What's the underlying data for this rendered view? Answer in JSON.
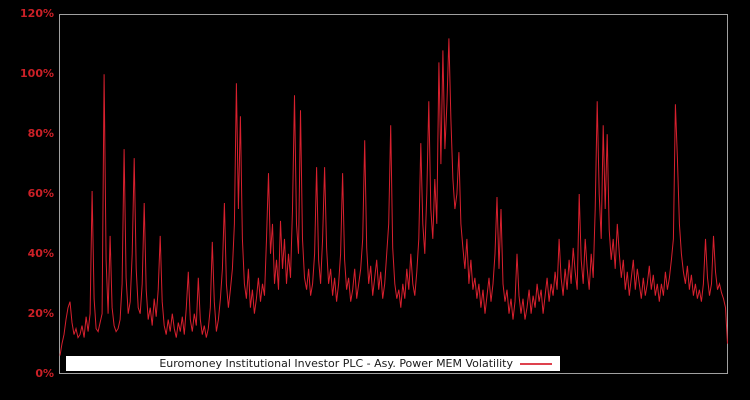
{
  "window": {
    "background": "#000000"
  },
  "chart_data": {
    "type": "line",
    "title": "",
    "xlabel": "",
    "ylabel": "",
    "grid": false,
    "legend_position": "bottom-inside",
    "axis_color": "#a0a0a0",
    "plot_background": "#000000",
    "tick_label_color": "#cc2027",
    "ylim": [
      0,
      120
    ],
    "ytick_values": [
      120,
      100,
      80,
      60,
      40,
      20,
      0
    ],
    "yticks": [
      "120%",
      "100%",
      "80%",
      "60%",
      "40%",
      "20%",
      "0%"
    ],
    "xticks": [],
    "series": [
      {
        "name": "Euromoney Institutional Investor PLC - Asy. Power MEM Volatility",
        "color": "#d8202e",
        "unit": "%",
        "values": [
          6,
          10,
          13,
          18,
          22,
          24,
          17,
          13,
          15,
          12,
          13,
          16,
          12,
          19,
          14,
          20,
          61,
          25,
          15,
          14,
          17,
          20,
          100,
          38,
          20,
          46,
          22,
          16,
          14,
          15,
          18,
          30,
          75,
          32,
          20,
          24,
          40,
          72,
          35,
          22,
          20,
          30,
          57,
          28,
          18,
          22,
          16,
          25,
          19,
          28,
          46,
          24,
          16,
          13,
          18,
          14,
          20,
          15,
          12,
          17,
          14,
          19,
          13,
          22,
          34,
          18,
          14,
          20,
          16,
          32,
          18,
          13,
          16,
          12,
          15,
          22,
          44,
          24,
          14,
          18,
          25,
          35,
          57,
          30,
          22,
          28,
          35,
          50,
          97,
          55,
          86,
          45,
          30,
          25,
          35,
          22,
          28,
          20,
          25,
          32,
          24,
          30,
          26,
          45,
          67,
          40,
          50,
          30,
          38,
          28,
          51,
          35,
          45,
          30,
          40,
          32,
          55,
          93,
          50,
          40,
          88,
          45,
          32,
          28,
          35,
          26,
          30,
          40,
          69,
          38,
          30,
          45,
          69,
          42,
          30,
          35,
          26,
          32,
          24,
          30,
          40,
          67,
          38,
          28,
          32,
          24,
          28,
          35,
          25,
          30,
          35,
          45,
          78,
          42,
          30,
          36,
          26,
          32,
          38,
          28,
          34,
          25,
          30,
          40,
          50,
          83,
          42,
          30,
          25,
          28,
          22,
          30,
          25,
          35,
          28,
          40,
          30,
          26,
          34,
          45,
          77,
          50,
          40,
          60,
          91,
          55,
          45,
          65,
          50,
          104,
          70,
          108,
          75,
          90,
          112,
          85,
          65,
          55,
          60,
          74,
          50,
          42,
          35,
          45,
          30,
          38,
          28,
          32,
          25,
          30,
          22,
          28,
          20,
          26,
          32,
          24,
          30,
          40,
          59,
          35,
          55,
          30,
          24,
          28,
          20,
          25,
          18,
          24,
          40,
          26,
          20,
          25,
          18,
          22,
          28,
          20,
          26,
          22,
          30,
          24,
          28,
          20,
          26,
          32,
          24,
          30,
          26,
          34,
          28,
          45,
          32,
          26,
          35,
          28,
          38,
          30,
          42,
          34,
          28,
          60,
          38,
          30,
          45,
          35,
          28,
          40,
          32,
          55,
          91,
          60,
          45,
          83,
          55,
          80,
          48,
          38,
          45,
          35,
          50,
          40,
          32,
          38,
          28,
          34,
          26,
          32,
          38,
          28,
          35,
          30,
          25,
          32,
          26,
          30,
          36,
          28,
          33,
          26,
          30,
          24,
          30,
          26,
          34,
          28,
          32,
          38,
          45,
          90,
          72,
          50,
          40,
          34,
          30,
          36,
          28,
          33,
          26,
          30,
          25,
          28,
          24,
          30,
          45,
          32,
          26,
          30,
          46,
          34,
          28,
          30,
          27,
          25,
          22,
          10
        ]
      }
    ],
    "legend": {
      "label": "Euromoney Institutional Investor PLC - Asy. Power MEM Volatility"
    }
  }
}
